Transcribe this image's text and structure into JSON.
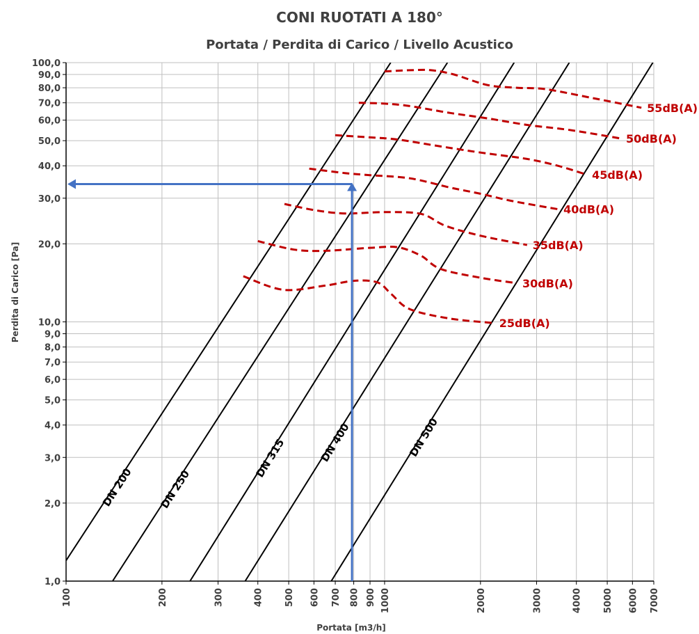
{
  "chart_data": {
    "type": "line",
    "title": "CONI RUOTATI A 180°",
    "subtitle": "Portata / Perdita di Carico / Livello Acustico",
    "xlabel": "Portata [m3/h]",
    "ylabel": "Perdita di Carico [Pa]",
    "x_scale": "log",
    "y_scale": "log",
    "xlim": [
      100,
      7000
    ],
    "ylim": [
      1,
      100
    ],
    "grid": true,
    "x_ticks": [
      100,
      200,
      300,
      400,
      500,
      600,
      700,
      800,
      900,
      1000,
      2000,
      3000,
      4000,
      5000,
      6000,
      7000
    ],
    "x_tick_labels": [
      "100",
      "200",
      "300",
      "400",
      "500",
      "600",
      "700",
      "800",
      "900",
      "1000",
      "2000",
      "3000",
      "4000",
      "5000",
      "6000",
      "7000"
    ],
    "y_ticks": [
      1,
      2,
      3,
      4,
      5,
      6,
      7,
      8,
      9,
      10,
      20,
      30,
      40,
      50,
      60,
      70,
      80,
      90,
      100
    ],
    "y_tick_labels": [
      "1,0",
      "2,0",
      "3,0",
      "4,0",
      "5,0",
      "6,0",
      "7,0",
      "8,0",
      "9,0",
      "10,0",
      "20,0",
      "30,0",
      "40,0",
      "50,0",
      "60,0",
      "70,0",
      "80,0",
      "90,0",
      "100,0"
    ],
    "duct_lines": [
      {
        "name": "DN 200",
        "points": [
          [
            100,
            1.2
          ],
          [
            1045,
            100
          ]
        ]
      },
      {
        "name": "DN 250",
        "points": [
          [
            140,
            1.0
          ],
          [
            1575,
            100
          ]
        ]
      },
      {
        "name": "DN 315",
        "points": [
          [
            245,
            1.0
          ],
          [
            2550,
            100
          ]
        ]
      },
      {
        "name": "DN 400",
        "points": [
          [
            365,
            1.0
          ],
          [
            3800,
            100
          ]
        ]
      },
      {
        "name": "DN 500",
        "points": [
          [
            680,
            1.0
          ],
          [
            6950,
            100
          ]
        ]
      }
    ],
    "noise_curves": [
      {
        "name": "25dB(A)",
        "points": [
          [
            360,
            15
          ],
          [
            480,
            13.3
          ],
          [
            650,
            13.8
          ],
          [
            800,
            14.4
          ],
          [
            950,
            14.2
          ],
          [
            1050,
            12.8
          ],
          [
            1200,
            11.2
          ],
          [
            1600,
            10.3
          ],
          [
            2200,
            9.9
          ]
        ]
      },
      {
        "name": "30dB(A)",
        "points": [
          [
            400,
            20.5
          ],
          [
            520,
            19
          ],
          [
            650,
            18.8
          ],
          [
            900,
            19.3
          ],
          [
            1100,
            19.4
          ],
          [
            1300,
            18
          ],
          [
            1500,
            16
          ],
          [
            2000,
            14.8
          ],
          [
            2600,
            14.1
          ]
        ]
      },
      {
        "name": "35dB(A)",
        "points": [
          [
            485,
            28.5
          ],
          [
            600,
            27
          ],
          [
            750,
            26.2
          ],
          [
            1000,
            26.5
          ],
          [
            1300,
            26.1
          ],
          [
            1550,
            23.5
          ],
          [
            2000,
            21.5
          ],
          [
            2800,
            19.8
          ]
        ]
      },
      {
        "name": "40dB(A)",
        "points": [
          [
            580,
            39
          ],
          [
            750,
            37.5
          ],
          [
            900,
            36.8
          ],
          [
            1200,
            35.8
          ],
          [
            1600,
            33
          ],
          [
            2000,
            31.2
          ],
          [
            2500,
            29.3
          ],
          [
            3500,
            27.2
          ]
        ]
      },
      {
        "name": "45dB(A)",
        "points": [
          [
            700,
            52.5
          ],
          [
            900,
            51.5
          ],
          [
            1100,
            50.5
          ],
          [
            1500,
            47.5
          ],
          [
            2000,
            45
          ],
          [
            2800,
            42.5
          ],
          [
            3500,
            40
          ],
          [
            4300,
            37
          ]
        ]
      },
      {
        "name": "50dB(A)",
        "points": [
          [
            830,
            70
          ],
          [
            1000,
            69.5
          ],
          [
            1200,
            68
          ],
          [
            1600,
            64
          ],
          [
            2100,
            61
          ],
          [
            2800,
            57.5
          ],
          [
            3800,
            55
          ],
          [
            5500,
            51
          ]
        ]
      },
      {
        "name": "55dB(A)",
        "points": [
          [
            1000,
            92.5
          ],
          [
            1200,
            93.5
          ],
          [
            1400,
            93.5
          ],
          [
            1650,
            90
          ],
          [
            2100,
            82
          ],
          [
            2600,
            80
          ],
          [
            3200,
            79
          ],
          [
            4500,
            73
          ],
          [
            6400,
            67
          ]
        ]
      }
    ],
    "example_path": {
      "points": [
        [
          790,
          1.0
        ],
        [
          790,
          34
        ],
        [
          100,
          34
        ]
      ]
    },
    "colors": {
      "duct_line": "#000000",
      "noise_curve": "#c00000",
      "example_path": "#4472c4",
      "grid": "#bfbfbf",
      "text": "#404040"
    }
  }
}
